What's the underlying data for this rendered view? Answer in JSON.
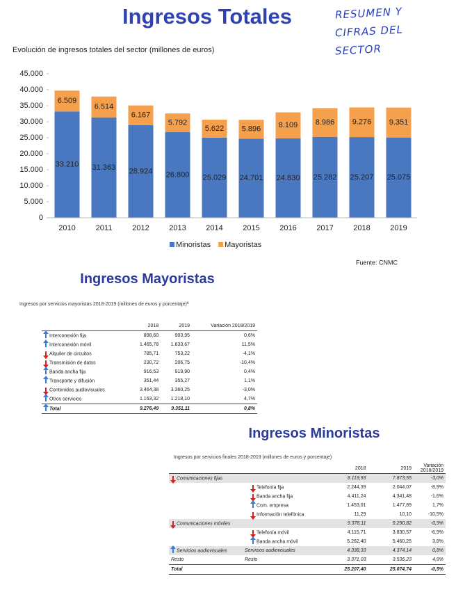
{
  "header": {
    "title": "Ingresos Totales",
    "note": [
      "RESUMEN Y",
      "CIFRAS DEL",
      "SECTOR"
    ]
  },
  "chart_data": {
    "type": "bar",
    "stacked": true,
    "subtitle": "Evolución de ingresos totales del sector (millones de euros)",
    "categories": [
      "2010",
      "2011",
      "2012",
      "2013",
      "2014",
      "2015",
      "2016",
      "2017",
      "2018",
      "2019"
    ],
    "series": [
      {
        "name": "Minoristas",
        "color": "#4a78c0",
        "values": [
          33210,
          31363,
          28924,
          26800,
          25029,
          24701,
          24830,
          25282,
          25207,
          25075
        ],
        "value_labels": [
          "33.210",
          "31.363",
          "28.924",
          "26.800",
          "25.029",
          "24.701",
          "24.830",
          "25.282",
          "25.207",
          "25.075"
        ]
      },
      {
        "name": "Mayoristas",
        "color": "#f4a04c",
        "values": [
          6509,
          6514,
          6167,
          5792,
          5622,
          5896,
          8109,
          8986,
          9276,
          9351
        ],
        "value_labels": [
          "6.509",
          "6.514",
          "6.167",
          "5.792",
          "5.622",
          "5.896",
          "8.109",
          "8.986",
          "9.276",
          "9.351"
        ]
      }
    ],
    "ylim": [
      0,
      45000
    ],
    "yticks": [
      0,
      {
        "value": 5000,
        "label": "5.000"
      },
      {
        "value": 10000,
        "label": "10.000"
      },
      {
        "value": 15000,
        "label": "15.000"
      },
      {
        "value": 20000,
        "label": "20.000"
      },
      {
        "value": 25000,
        "label": "25.000"
      },
      {
        "value": 30000,
        "label": "30.000"
      },
      {
        "value": 35000,
        "label": "35.000"
      },
      {
        "value": 40000,
        "label": "40.000"
      },
      {
        "value": 45000,
        "label": "45.000"
      }
    ],
    "legend": "bottom",
    "source": "Fuente: CNMC"
  },
  "mayoristas": {
    "title": "Ingresos Mayoristas",
    "caption": "Ingresos por servicios mayoristas 2018-2019 (millones de euros y porcentaje)ª",
    "columns": [
      "2018",
      "2019",
      "Variación 2018/2019"
    ],
    "rows": [
      {
        "label": "Interconexión fija",
        "cells": [
          "898,60",
          "903,95",
          "0,6%"
        ]
      },
      {
        "label": "Interconexión móvil",
        "cells": [
          "1.465,78",
          "1.633,67",
          "11,5%"
        ]
      },
      {
        "label": "Alquiler de circuitos",
        "cells": [
          "785,71",
          "753,22",
          "-4,1%"
        ]
      },
      {
        "label": "Transmisión de datos",
        "cells": [
          "230,72",
          "206,75",
          "-10,4%"
        ]
      },
      {
        "label": "Banda ancha fija",
        "cells": [
          "916,53",
          "919,90",
          "0,4%"
        ]
      },
      {
        "label": "Transporte y difusión",
        "cells": [
          "351,44",
          "355,27",
          "1,1%"
        ]
      },
      {
        "label": "Contenidos audiovisuales",
        "cells": [
          "3.464,38",
          "3.360,25",
          "-3,0%"
        ]
      },
      {
        "label": "Otros servicios",
        "cells": [
          "1.163,32",
          "1.218,10",
          "4,7%"
        ]
      },
      {
        "label": "Total",
        "cells": [
          "9.276,49",
          "9.351,11",
          "0,8%"
        ]
      }
    ]
  },
  "minoristas": {
    "title": "Ingresos Minoristas",
    "caption": "Ingresos por servicios finales 2018-2019 (millones de euros y porcentaje)",
    "columns": [
      "2018",
      "2019",
      "Variación 2018/2019"
    ],
    "rows": [
      {
        "group": "Comunicaciones fijas",
        "cells": [
          "8.119,93",
          "7.873,55",
          "-3,0%"
        ]
      },
      {
        "item": "Telefonía fija",
        "cells": [
          "2.244,39",
          "2.044,07",
          "-8,9%"
        ]
      },
      {
        "item": "Banda ancha fija",
        "cells": [
          "4.411,24",
          "4.341,48",
          "-1,6%"
        ]
      },
      {
        "item": "Com. empresa",
        "cells": [
          "1.453,01",
          "1.477,89",
          "1,7%"
        ]
      },
      {
        "item": "Información telefónica",
        "cells": [
          "11,29",
          "10,10",
          "-10,5%"
        ]
      },
      {
        "group": "Comunicaciones móviles",
        "cells": [
          "9.378,11",
          "9.290,82",
          "-0,9%"
        ]
      },
      {
        "item": "Telefonía móvil",
        "cells": [
          "4.115,71",
          "3.830,57",
          "-6,9%"
        ]
      },
      {
        "item": "Banda ancha móvil",
        "cells": [
          "5.262,40",
          "5.460,25",
          "3,8%"
        ]
      },
      {
        "group": "Servicios audiovisuales",
        "item": "Servicios audiovisuales",
        "cells": [
          "4.338,33",
          "4.374,14",
          "0,8%"
        ]
      },
      {
        "group": "Resto",
        "item": "Resto",
        "cells": [
          "3.371,03",
          "3.536,23",
          "4,9%"
        ]
      },
      {
        "group": "Total",
        "cells": [
          "25.207,40",
          "25.074,74",
          "-0,5%"
        ]
      }
    ]
  }
}
